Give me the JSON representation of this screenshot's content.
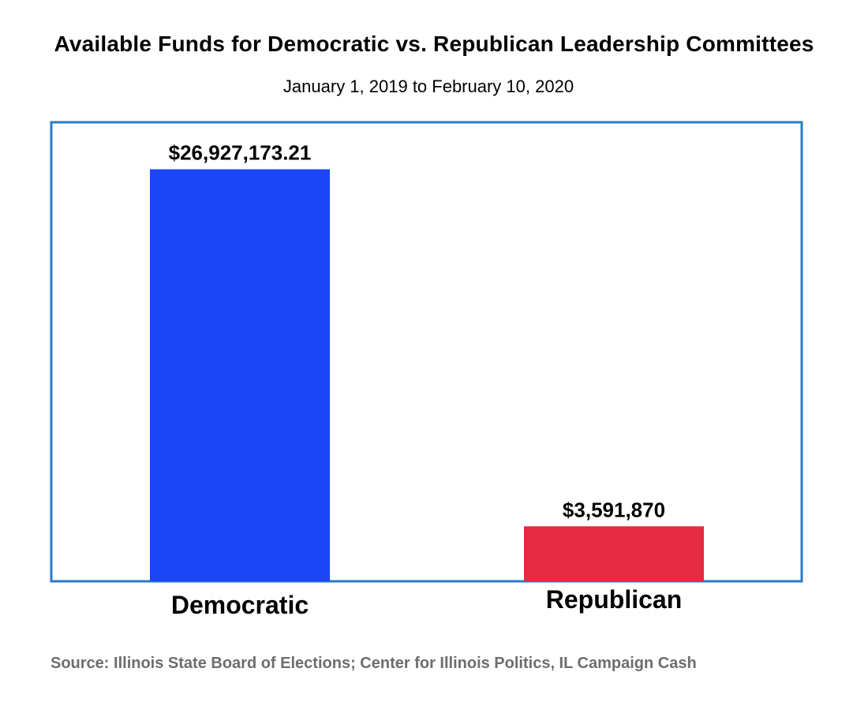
{
  "chart_data": {
    "type": "bar",
    "title": "Available Funds for Democratic vs. Republican Leadership Committees",
    "subtitle": "January 1, 2019 to February 10, 2020",
    "categories": [
      "Democratic",
      "Republican"
    ],
    "values": [
      26927173.21,
      3591870
    ],
    "value_labels": [
      "$26,927,173.21",
      "$3,591,870"
    ],
    "colors": [
      "#1a46f5",
      "#e62a42"
    ],
    "frame_color": "#2a7bc8",
    "ylim": [
      0,
      30000000
    ],
    "grid": false,
    "source": "Source: Illinois State Board of Elections; Center for Illinois Politics, IL Campaign Cash"
  }
}
